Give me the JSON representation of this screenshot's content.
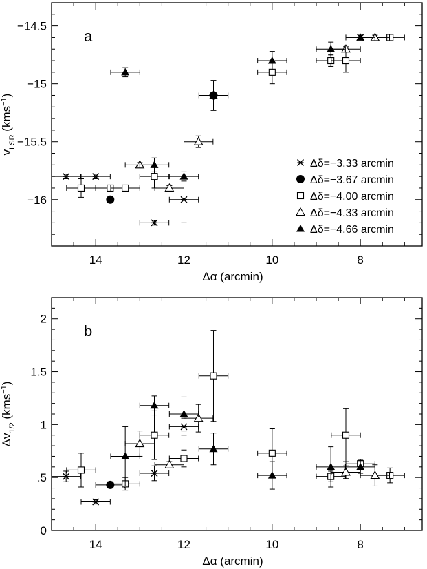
{
  "chart_data": [
    {
      "type": "scatter",
      "panel_label": "a",
      "xlabel": "Δα (arcmin)",
      "ylabel": {
        "main": "v",
        "sub": "LSR",
        "units_open": " (kms",
        "sup": "−1",
        "units_close": ")"
      },
      "xlim": [
        15,
        6.6
      ],
      "ylim": [
        -16.4,
        -14.3
      ],
      "x_ticks": [
        14,
        12,
        10,
        8
      ],
      "x_tick_labels": [
        "14",
        "12",
        "10",
        "8"
      ],
      "y_ticks": [
        -16,
        -15.5,
        -15,
        -14.5
      ],
      "y_tick_labels": [
        "−16",
        "−15.5",
        "−15",
        "−14.5"
      ],
      "legend_position": "lower-right",
      "series": [
        {
          "name": "Δδ=−3.33 arcmin",
          "marker": "star",
          "points": [
            {
              "x": 14.67,
              "y": -15.8,
              "xerr": 0.33,
              "yerr": 0.02
            },
            {
              "x": 14.0,
              "y": -15.8,
              "xerr": 0.33,
              "yerr": 0.02
            },
            {
              "x": 12.67,
              "y": -16.2,
              "xerr": 0.33,
              "yerr": 0.02
            },
            {
              "x": 12.0,
              "y": -16.0,
              "xerr": 0.33,
              "yerr": 0.2
            },
            {
              "x": 8.0,
              "y": -14.6,
              "xerr": 0.33,
              "yerr": 0.02
            }
          ]
        },
        {
          "name": "Δδ=−3.67 arcmin",
          "marker": "circle-filled",
          "points": [
            {
              "x": 13.67,
              "y": -16.0,
              "xerr": 0.0,
              "yerr": 0.0
            },
            {
              "x": 11.33,
              "y": -15.1,
              "xerr": 0.0,
              "yerr": 0.0
            }
          ]
        },
        {
          "name": "Δδ=−4.00 arcmin",
          "marker": "square-open",
          "points": [
            {
              "x": 14.33,
              "y": -15.9,
              "xerr": 0.33,
              "yerr": 0.08
            },
            {
              "x": 13.67,
              "y": -15.9,
              "xerr": 0.33,
              "yerr": 0.02
            },
            {
              "x": 13.33,
              "y": -15.9,
              "xerr": 0.33,
              "yerr": 0.02
            },
            {
              "x": 12.67,
              "y": -15.8,
              "xerr": 0.33,
              "yerr": 0.1
            },
            {
              "x": 10.0,
              "y": -14.9,
              "xerr": 0.33,
              "yerr": 0.1
            },
            {
              "x": 8.67,
              "y": -14.8,
              "xerr": 0.33,
              "yerr": 0.05
            },
            {
              "x": 8.33,
              "y": -14.8,
              "xerr": 0.33,
              "yerr": 0.1
            },
            {
              "x": 7.33,
              "y": -14.6,
              "xerr": 0.33,
              "yerr": 0.02
            }
          ]
        },
        {
          "name": "Δδ=−4.33 arcmin",
          "marker": "triangle-open",
          "points": [
            {
              "x": 13.0,
              "y": -15.7,
              "xerr": 0.33,
              "yerr": 0.02
            },
            {
              "x": 12.33,
              "y": -15.9,
              "xerr": 0.33,
              "yerr": 0.02
            },
            {
              "x": 11.67,
              "y": -15.5,
              "xerr": 0.33,
              "yerr": 0.05
            },
            {
              "x": 8.33,
              "y": -14.7,
              "xerr": 0.33,
              "yerr": 0.02
            },
            {
              "x": 7.67,
              "y": -14.6,
              "xerr": 0.33,
              "yerr": 0.02
            }
          ]
        },
        {
          "name": "Δδ=−4.66 arcmin",
          "marker": "triangle-filled",
          "points": [
            {
              "x": 13.33,
              "y": -14.9,
              "xerr": 0.33,
              "yerr": 0.04
            },
            {
              "x": 12.67,
              "y": -15.7,
              "xerr": 0.33,
              "yerr": 0.06
            },
            {
              "x": 12.0,
              "y": -15.8,
              "xerr": 0.33,
              "yerr": 0.04
            },
            {
              "x": 11.33,
              "y": -15.1,
              "xerr": 0.33,
              "yerr": 0.13
            },
            {
              "x": 10.0,
              "y": -14.8,
              "xerr": 0.33,
              "yerr": 0.08
            },
            {
              "x": 8.67,
              "y": -14.7,
              "xerr": 0.33,
              "yerr": 0.06
            },
            {
              "x": 8.0,
              "y": -14.6,
              "xerr": 0.33,
              "yerr": 0.02
            }
          ]
        }
      ]
    },
    {
      "type": "scatter",
      "panel_label": "b",
      "xlabel": "Δα (arcmin)",
      "ylabel": {
        "main": "Δv",
        "sub": "1/2",
        "units_open": " (kms",
        "sup": "−1",
        "units_close": ")"
      },
      "xlim": [
        15,
        6.6
      ],
      "ylim": [
        0,
        2.2
      ],
      "x_ticks": [
        14,
        12,
        10,
        8
      ],
      "x_tick_labels": [
        "14",
        "12",
        "10",
        "8"
      ],
      "y_ticks": [
        0,
        0.5,
        1,
        1.5,
        2
      ],
      "y_tick_labels": [
        "0",
        ".5",
        "1",
        "1.5",
        "2"
      ],
      "series": [
        {
          "name": "Δδ=−3.33 arcmin",
          "marker": "star",
          "points": [
            {
              "x": 14.67,
              "y": 0.51,
              "xerr": 0.33,
              "yerr": 0.05
            },
            {
              "x": 14.0,
              "y": 0.27,
              "xerr": 0.33,
              "yerr": 0.02
            },
            {
              "x": 12.67,
              "y": 0.54,
              "xerr": 0.33,
              "yerr": 0.07
            },
            {
              "x": 12.0,
              "y": 0.98,
              "xerr": 0.33,
              "yerr": 0.08
            }
          ]
        },
        {
          "name": "Δδ=−3.67 arcmin",
          "marker": "circle-filled",
          "points": [
            {
              "x": 13.67,
              "y": 0.43,
              "xerr": 0.33,
              "yerr": 0.03
            }
          ]
        },
        {
          "name": "Δδ=−4.00 arcmin",
          "marker": "square-open",
          "points": [
            {
              "x": 14.33,
              "y": 0.57,
              "xerr": 0.33,
              "yerr": 0.16
            },
            {
              "x": 13.33,
              "y": 0.44,
              "xerr": 0.33,
              "yerr": 0.06
            },
            {
              "x": 12.67,
              "y": 0.9,
              "xerr": 0.33,
              "yerr": 0.23
            },
            {
              "x": 12.0,
              "y": 0.68,
              "xerr": 0.33,
              "yerr": 0.08
            },
            {
              "x": 11.33,
              "y": 1.46,
              "xerr": 0.33,
              "yerr": 0.43
            },
            {
              "x": 10.0,
              "y": 0.73,
              "xerr": 0.33,
              "yerr": 0.23
            },
            {
              "x": 8.67,
              "y": 0.51,
              "xerr": 0.33,
              "yerr": 0.05
            },
            {
              "x": 8.33,
              "y": 0.9,
              "xerr": 0.33,
              "yerr": 0.25
            },
            {
              "x": 8.0,
              "y": 0.63,
              "xerr": 0.33,
              "yerr": 0.04
            },
            {
              "x": 7.33,
              "y": 0.52,
              "xerr": 0.33,
              "yerr": 0.07
            }
          ]
        },
        {
          "name": "Δδ=−4.33 arcmin",
          "marker": "triangle-open",
          "points": [
            {
              "x": 13.0,
              "y": 0.82,
              "xerr": 0.33,
              "yerr": 0.12
            },
            {
              "x": 12.33,
              "y": 0.62,
              "xerr": 0.33,
              "yerr": 0.03
            },
            {
              "x": 11.67,
              "y": 1.06,
              "xerr": 0.33,
              "yerr": 0.13
            },
            {
              "x": 8.33,
              "y": 0.55,
              "xerr": 0.33,
              "yerr": 0.06
            },
            {
              "x": 7.67,
              "y": 0.52,
              "xerr": 0.33,
              "yerr": 0.1
            }
          ]
        },
        {
          "name": "Δδ=−4.66 arcmin",
          "marker": "triangle-filled",
          "points": [
            {
              "x": 13.33,
              "y": 0.7,
              "xerr": 0.33,
              "yerr": 0.28
            },
            {
              "x": 12.67,
              "y": 1.18,
              "xerr": 0.33,
              "yerr": 0.09
            },
            {
              "x": 12.0,
              "y": 1.1,
              "xerr": 0.33,
              "yerr": 0.16
            },
            {
              "x": 11.33,
              "y": 0.77,
              "xerr": 0.33,
              "yerr": 0.15
            },
            {
              "x": 10.0,
              "y": 0.52,
              "xerr": 0.33,
              "yerr": 0.13
            },
            {
              "x": 8.67,
              "y": 0.6,
              "xerr": 0.33,
              "yerr": 0.19
            },
            {
              "x": 8.0,
              "y": 0.6,
              "xerr": 0.33,
              "yerr": 0.06
            }
          ]
        }
      ]
    }
  ]
}
